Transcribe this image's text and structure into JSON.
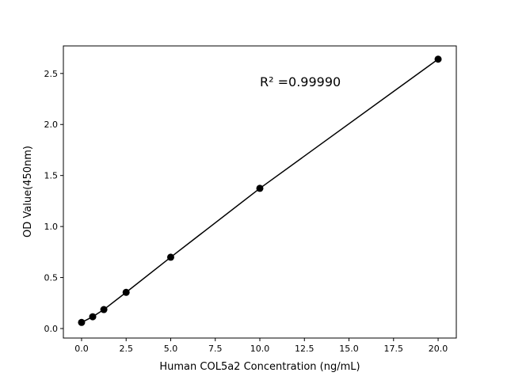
{
  "chart_data": {
    "type": "scatter",
    "title": "",
    "xlabel": "Human COL5a2 Concentration (ng/mL)",
    "ylabel": "OD Value(450nm)",
    "xlim": [
      -1.02,
      21.02
    ],
    "ylim": [
      -0.093,
      2.77
    ],
    "xticks": [
      0,
      2.5,
      5,
      7.5,
      10,
      12.5,
      15,
      17.5,
      20
    ],
    "xtick_labels": [
      "0.0",
      "2.5",
      "5.0",
      "7.5",
      "10.0",
      "12.5",
      "15.0",
      "17.5",
      "20.0"
    ],
    "yticks": [
      0,
      0.5,
      1,
      1.5,
      2,
      2.5
    ],
    "ytick_labels": [
      "0.0",
      "0.5",
      "1.0",
      "1.5",
      "2.0",
      "2.5"
    ],
    "grid": false,
    "annotation": "R² =0.99990",
    "series": [
      {
        "x": [
          0,
          0.625,
          1.25,
          2.5,
          5,
          10,
          20
        ],
        "y": [
          0.06,
          0.116,
          0.186,
          0.355,
          0.699,
          1.374,
          2.64
        ],
        "color": "#000000",
        "marker": "circle",
        "line": true
      }
    ]
  }
}
